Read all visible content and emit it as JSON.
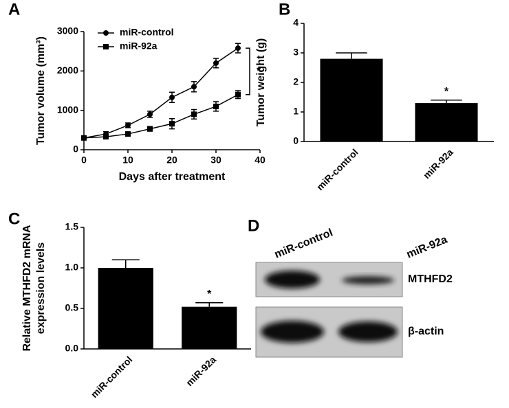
{
  "chart_data": [
    {
      "type": "line",
      "panel": "A",
      "x_label": "Days after treatment",
      "y_label": "Tumor volume (mm³)",
      "x": [
        0,
        5,
        10,
        15,
        20,
        25,
        30,
        35
      ],
      "series": [
        {
          "name": "miR-control",
          "color": "#000000",
          "marker": "circle",
          "values": [
            300,
            400,
            620,
            900,
            1330,
            1600,
            2200,
            2580
          ],
          "errors": [
            0,
            60,
            60,
            80,
            130,
            130,
            120,
            120
          ]
        },
        {
          "name": "miR-92a",
          "color": "#000000",
          "marker": "square",
          "values": [
            300,
            330,
            400,
            530,
            660,
            900,
            1100,
            1400
          ],
          "errors": [
            0,
            50,
            50,
            60,
            130,
            120,
            120,
            100
          ]
        }
      ],
      "xlim": [
        0,
        40
      ],
      "xticks": [
        0,
        10,
        20,
        30,
        40
      ],
      "ylim": [
        0,
        3000
      ],
      "yticks": [
        0,
        1000,
        2000,
        3000
      ],
      "annotation": "*",
      "legend": "upper left"
    },
    {
      "type": "bar",
      "panel": "B",
      "y_label": "Tumor weight (g)",
      "categories": [
        "miR-control",
        "miR-92a"
      ],
      "values": [
        2.8,
        1.3
      ],
      "errors": [
        0.2,
        0.1
      ],
      "color": "#000000",
      "ylim": [
        0,
        4
      ],
      "yticks": [
        0,
        1,
        2,
        3,
        4
      ],
      "annotation": "*"
    },
    {
      "type": "bar",
      "panel": "C",
      "y_label": [
        "Relative MTHFD2 mRNA",
        "expression levels"
      ],
      "categories": [
        "miR-control",
        "miR-92a"
      ],
      "values": [
        1.0,
        0.52
      ],
      "errors": [
        0.1,
        0.05
      ],
      "color": "#000000",
      "ylim": [
        0,
        1.5
      ],
      "yticks": [
        {
          "value": 0,
          "label": "0.0"
        },
        {
          "value": 0.5,
          "label": "0.5"
        },
        {
          "value": 1,
          "label": "1.0"
        },
        {
          "value": 1.5,
          "label": "1.5"
        }
      ],
      "annotation": "*"
    }
  ],
  "blot": {
    "panel": "D",
    "lanes": [
      "miR-control",
      "miR-92a"
    ],
    "rows": [
      "MTHFD2",
      "β-actin"
    ]
  }
}
